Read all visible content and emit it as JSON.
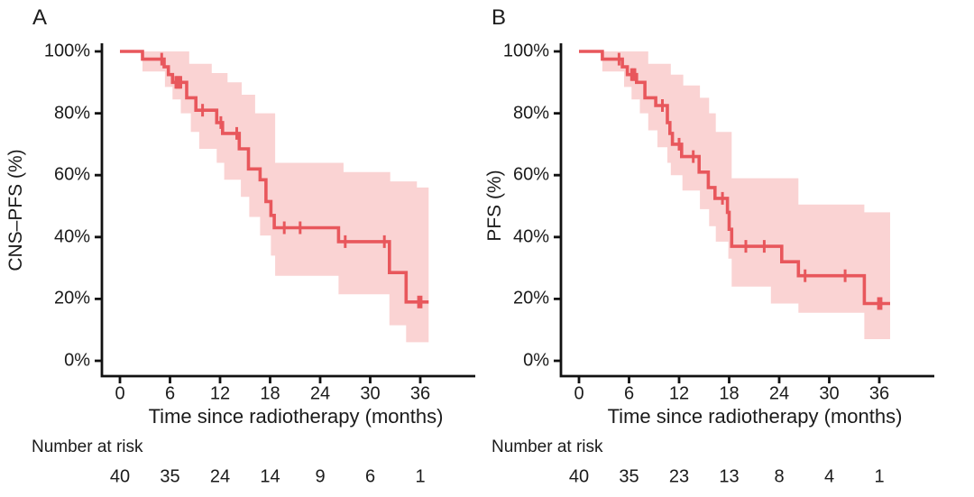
{
  "figure": {
    "panels": [
      {
        "label": "A",
        "y_axis_title": "CNS–PFS (%)",
        "x_axis_title": "Time since radiotherapy (months)",
        "risk_header": "Number at risk"
      },
      {
        "label": "B",
        "y_axis_title": "PFS (%)",
        "x_axis_title": "Time since radiotherapy (months)",
        "risk_header": "Number at risk"
      }
    ]
  },
  "colors": {
    "curve": "#e8575c",
    "ci_band": "#fad3d3",
    "axis": "#111111",
    "text": "#1b1b1b"
  },
  "chart_data": [
    {
      "panel": "A",
      "type": "line",
      "subtype": "kaplan_meier_step_with_ci",
      "y_label": "CNS–PFS (%)",
      "x_label": "Time since radiotherapy (months)",
      "x_ticks": [
        0,
        6,
        12,
        18,
        24,
        30,
        36
      ],
      "y_ticks_percent": [
        0,
        20,
        40,
        60,
        80,
        100
      ],
      "y_tick_labels": [
        "0%",
        "20%",
        "40%",
        "60%",
        "80%",
        "100%"
      ],
      "survival_start_percent": 100,
      "end_time_months": 37.0,
      "survival_drops": [
        [
          2.7,
          97.5
        ],
        [
          5.3,
          95
        ],
        [
          5.8,
          92.5
        ],
        [
          6.3,
          90
        ],
        [
          8.0,
          85
        ],
        [
          9.1,
          81
        ],
        [
          11.6,
          77
        ],
        [
          12.3,
          73.5
        ],
        [
          14.3,
          68.5
        ],
        [
          15.4,
          62
        ],
        [
          16.8,
          58.5
        ],
        [
          17.5,
          51.5
        ],
        [
          18.1,
          47
        ],
        [
          18.5,
          43
        ],
        [
          26.2,
          38.5
        ],
        [
          32.3,
          28.5
        ],
        [
          34.3,
          19
        ]
      ],
      "censor_marks": [
        [
          5.0,
          97.5
        ],
        [
          6.7,
          90
        ],
        [
          6.9,
          90
        ],
        [
          7.1,
          90
        ],
        [
          7.3,
          90
        ],
        [
          9.9,
          81
        ],
        [
          12.1,
          77
        ],
        [
          14.0,
          73.5
        ],
        [
          19.7,
          43
        ],
        [
          21.6,
          43
        ],
        [
          27.0,
          38.5
        ],
        [
          31.7,
          38.5
        ],
        [
          35.8,
          19
        ],
        [
          36.1,
          19
        ]
      ],
      "ci_upper": {
        "start": [
          2.7,
          100
        ],
        "drops": [
          [
            8.3,
            96
          ],
          [
            11.0,
            93
          ],
          [
            12.9,
            90
          ],
          [
            14.6,
            86
          ],
          [
            16.2,
            80
          ],
          [
            18.6,
            64
          ],
          [
            26.8,
            61
          ],
          [
            32.4,
            58
          ],
          [
            35.6,
            56
          ]
        ]
      },
      "ci_lower": {
        "start": [
          2.7,
          93.5
        ],
        "drops": [
          [
            5.4,
            88.5
          ],
          [
            6.3,
            84.5
          ],
          [
            7.3,
            80
          ],
          [
            8.5,
            74
          ],
          [
            9.5,
            68.5
          ],
          [
            11.6,
            64
          ],
          [
            12.5,
            58.5
          ],
          [
            14.5,
            53
          ],
          [
            15.5,
            46.5
          ],
          [
            16.8,
            40.5
          ],
          [
            18.1,
            34
          ],
          [
            18.6,
            27.5
          ],
          [
            26.2,
            21.5
          ],
          [
            32.3,
            11.5
          ],
          [
            34.3,
            6
          ]
        ]
      },
      "number_at_risk": {
        "times": [
          0,
          6,
          12,
          18,
          24,
          30,
          36
        ],
        "counts": [
          "40",
          "35",
          "24",
          "14",
          "9",
          "6",
          "1"
        ]
      }
    },
    {
      "panel": "B",
      "type": "line",
      "subtype": "kaplan_meier_step_with_ci",
      "y_label": "PFS (%)",
      "x_label": "Time since radiotherapy (months)",
      "x_ticks": [
        0,
        6,
        12,
        18,
        24,
        30,
        36
      ],
      "y_ticks_percent": [
        0,
        20,
        40,
        60,
        80,
        100
      ],
      "y_tick_labels": [
        "0%",
        "20%",
        "40%",
        "60%",
        "80%",
        "100%"
      ],
      "survival_start_percent": 100,
      "end_time_months": 37.3,
      "survival_drops": [
        [
          2.8,
          97.5
        ],
        [
          5.2,
          95
        ],
        [
          5.8,
          92.5
        ],
        [
          6.9,
          90
        ],
        [
          7.9,
          85
        ],
        [
          9.2,
          82.5
        ],
        [
          10.6,
          77
        ],
        [
          10.9,
          73.5
        ],
        [
          11.2,
          70
        ],
        [
          12.3,
          66
        ],
        [
          14.4,
          61
        ],
        [
          15.5,
          56
        ],
        [
          16.3,
          52.5
        ],
        [
          17.8,
          48
        ],
        [
          18.0,
          42.5
        ],
        [
          18.3,
          37
        ],
        [
          24.3,
          32
        ],
        [
          26.3,
          27.5
        ],
        [
          34.2,
          18.5
        ]
      ],
      "censor_marks": [
        [
          4.8,
          97.5
        ],
        [
          6.3,
          92.5
        ],
        [
          6.5,
          92.5
        ],
        [
          6.7,
          92.5
        ],
        [
          10.0,
          82.5
        ],
        [
          12.0,
          70
        ],
        [
          13.7,
          66
        ],
        [
          17.2,
          52.5
        ],
        [
          20.0,
          37
        ],
        [
          22.2,
          37
        ],
        [
          27.1,
          27.5
        ],
        [
          31.9,
          27.5
        ],
        [
          35.9,
          18.5
        ],
        [
          36.2,
          18.5
        ]
      ],
      "ci_upper": {
        "start": [
          2.8,
          100
        ],
        "drops": [
          [
            8.3,
            96
          ],
          [
            11.0,
            92.5
          ],
          [
            12.5,
            89
          ],
          [
            14.5,
            85
          ],
          [
            15.6,
            80
          ],
          [
            16.4,
            74
          ],
          [
            18.3,
            59
          ],
          [
            26.3,
            50.5
          ],
          [
            34.2,
            48
          ]
        ]
      },
      "ci_lower": {
        "start": [
          2.8,
          93.5
        ],
        "drops": [
          [
            5.4,
            88.5
          ],
          [
            6.3,
            84.5
          ],
          [
            7.3,
            80
          ],
          [
            8.3,
            74.5
          ],
          [
            9.4,
            69
          ],
          [
            10.6,
            64
          ],
          [
            11.0,
            60
          ],
          [
            12.4,
            55
          ],
          [
            14.5,
            49
          ],
          [
            15.6,
            43.5
          ],
          [
            16.4,
            38.5
          ],
          [
            17.9,
            33
          ],
          [
            18.3,
            24
          ],
          [
            23.0,
            18.5
          ],
          [
            26.3,
            15.5
          ],
          [
            34.2,
            7
          ]
        ]
      },
      "number_at_risk": {
        "times": [
          0,
          6,
          12,
          18,
          24,
          30,
          36
        ],
        "counts": [
          "40",
          "35",
          "23",
          "13",
          "8",
          "4",
          "1"
        ]
      }
    }
  ]
}
